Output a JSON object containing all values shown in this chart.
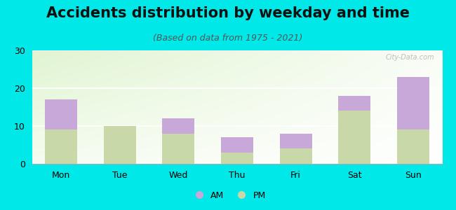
{
  "title": "Accidents distribution by weekday and time",
  "subtitle": "(Based on data from 1975 - 2021)",
  "categories": [
    "Mon",
    "Tue",
    "Wed",
    "Thu",
    "Fri",
    "Sat",
    "Sun"
  ],
  "pm_values": [
    9,
    10,
    8,
    3,
    4,
    14,
    9
  ],
  "am_values": [
    8,
    0,
    4,
    4,
    4,
    4,
    14
  ],
  "am_color": "#c8a8d8",
  "pm_color": "#c8d8a8",
  "ylim": [
    0,
    30
  ],
  "yticks": [
    0,
    10,
    20,
    30
  ],
  "outer_bg": "#00e8e8",
  "title_fontsize": 15,
  "subtitle_fontsize": 9,
  "tick_fontsize": 9,
  "legend_fontsize": 9,
  "bar_width": 0.55
}
